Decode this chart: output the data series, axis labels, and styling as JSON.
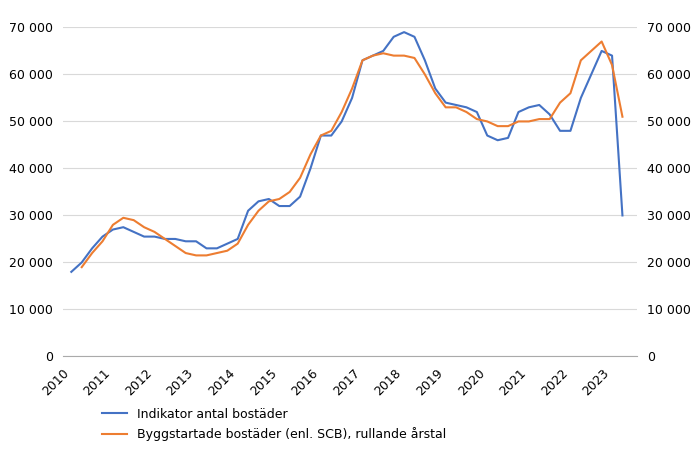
{
  "blue_label": "Indikator antal bostäder",
  "orange_label": "Byggstartade bostäder (enl. SCB), rullande årstal",
  "blue_color": "#4472C4",
  "orange_color": "#ED7D31",
  "ylim": [
    0,
    70000
  ],
  "yticks": [
    0,
    10000,
    20000,
    30000,
    40000,
    50000,
    60000,
    70000
  ],
  "ytick_labels": [
    "0",
    "10 000",
    "20 000",
    "30 000",
    "40 000",
    "50 000",
    "60 000",
    "70 000"
  ],
  "background_color": "#FFFFFF",
  "grid_color": "#D9D9D9",
  "blue_x": [
    2010.0,
    2010.25,
    2010.5,
    2010.75,
    2011.0,
    2011.25,
    2011.5,
    2011.75,
    2012.0,
    2012.25,
    2012.5,
    2012.75,
    2013.0,
    2013.25,
    2013.5,
    2013.75,
    2014.0,
    2014.25,
    2014.5,
    2014.75,
    2015.0,
    2015.25,
    2015.5,
    2015.75,
    2016.0,
    2016.25,
    2016.5,
    2016.75,
    2017.0,
    2017.25,
    2017.5,
    2017.75,
    2018.0,
    2018.25,
    2018.5,
    2018.75,
    2019.0,
    2019.25,
    2019.5,
    2019.75,
    2020.0,
    2020.25,
    2020.5,
    2020.75,
    2021.0,
    2021.25,
    2021.5,
    2021.75,
    2022.0,
    2022.25,
    2022.5,
    2022.75,
    2023.0,
    2023.25
  ],
  "blue_y": [
    18000,
    20000,
    23000,
    25500,
    27000,
    27500,
    26500,
    25500,
    25500,
    25000,
    25000,
    24500,
    24500,
    23000,
    23000,
    24000,
    25000,
    31000,
    33000,
    33500,
    32000,
    32000,
    34000,
    40000,
    47000,
    47000,
    50000,
    55000,
    63000,
    64000,
    65000,
    68000,
    69000,
    68000,
    63000,
    57000,
    54000,
    53500,
    53000,
    52000,
    47000,
    46000,
    46500,
    52000,
    53000,
    53500,
    51500,
    48000,
    48000,
    55000,
    60000,
    65000,
    64000,
    30000
  ],
  "orange_x": [
    2010.25,
    2010.5,
    2010.75,
    2011.0,
    2011.25,
    2011.5,
    2011.75,
    2012.0,
    2012.25,
    2012.5,
    2012.75,
    2013.0,
    2013.25,
    2013.5,
    2013.75,
    2014.0,
    2014.25,
    2014.5,
    2014.75,
    2015.0,
    2015.25,
    2015.5,
    2015.75,
    2016.0,
    2016.25,
    2016.5,
    2016.75,
    2017.0,
    2017.25,
    2017.5,
    2017.75,
    2018.0,
    2018.25,
    2018.5,
    2018.75,
    2019.0,
    2019.25,
    2019.5,
    2019.75,
    2020.0,
    2020.25,
    2020.5,
    2020.75,
    2021.0,
    2021.25,
    2021.5,
    2021.75,
    2022.0,
    2022.25,
    2022.5,
    2022.75,
    2023.0,
    2023.25
  ],
  "orange_y": [
    19000,
    22000,
    24500,
    28000,
    29500,
    29000,
    27500,
    26500,
    25000,
    23500,
    22000,
    21500,
    21500,
    22000,
    22500,
    24000,
    28000,
    31000,
    33000,
    33500,
    35000,
    38000,
    43000,
    47000,
    48000,
    52000,
    57000,
    63000,
    64000,
    64500,
    64000,
    64000,
    63500,
    60000,
    56000,
    53000,
    53000,
    52000,
    50500,
    50000,
    49000,
    49000,
    50000,
    50000,
    50500,
    50500,
    54000,
    56000,
    63000,
    65000,
    67000,
    62000,
    51000
  ],
  "xticks": [
    2010,
    2011,
    2012,
    2013,
    2014,
    2015,
    2016,
    2017,
    2018,
    2019,
    2020,
    2021,
    2022,
    2023
  ],
  "xlim": [
    2009.8,
    2023.6
  ]
}
